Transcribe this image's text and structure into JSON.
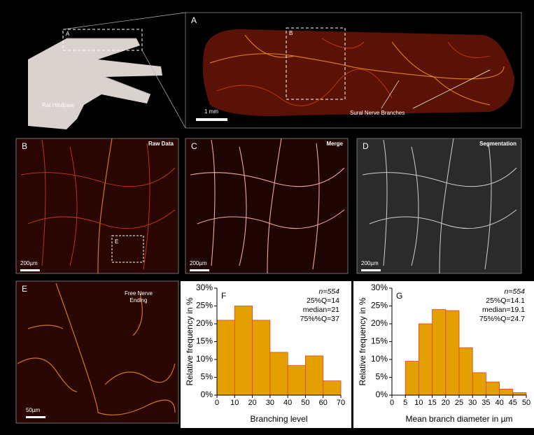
{
  "figure": {
    "hindpaw": {
      "box_label": "A",
      "caption": "Rat Hindpaw"
    },
    "panel_a": {
      "label": "A",
      "inset_label": "B",
      "scale_bar": "1 mm",
      "annotation": "Sural Nerve Branches"
    },
    "panel_b": {
      "label": "B",
      "title": "Raw Data",
      "inset_label": "E",
      "scale_bar": "200µm"
    },
    "panel_c": {
      "label": "C",
      "title": "Merge",
      "scale_bar": "200µm"
    },
    "panel_d": {
      "label": "D",
      "title": "Segmentation",
      "scale_bar": "200µm"
    },
    "panel_e": {
      "label": "E",
      "title_lines": [
        "Free Nerve",
        "Ending"
      ],
      "scale_bar": "50µm"
    }
  },
  "chart_data": [
    {
      "type": "histogram",
      "panel_label": "F",
      "x_label": "Branching level",
      "y_label": "Relative frequency in %",
      "bins": [
        0,
        10,
        20,
        30,
        40,
        50,
        60,
        70
      ],
      "values": [
        21,
        25,
        21,
        12,
        8.3,
        11,
        4
      ],
      "color": "#e3a000",
      "edge_color": "#e0402a",
      "xlim": [
        0,
        70
      ],
      "xticks": [
        0,
        10,
        20,
        30,
        40,
        50,
        60,
        70
      ],
      "ylim": [
        0,
        30
      ],
      "yticks": [
        {
          "value": 0,
          "label": "0%"
        },
        {
          "value": 5,
          "label": "5%"
        },
        {
          "value": 10,
          "label": "10%"
        },
        {
          "value": 15,
          "label": "15%"
        },
        {
          "value": 20,
          "label": "20%"
        },
        {
          "value": 25,
          "label": "25%"
        },
        {
          "value": 30,
          "label": "30%"
        }
      ],
      "annotations": [
        "n=554",
        "25%Q=14",
        "median=21",
        "75%%Q=37"
      ]
    },
    {
      "type": "histogram",
      "panel_label": "G",
      "x_label": "Mean branch diameter in µm",
      "y_label": "Relative frequency in %",
      "bins": [
        5,
        10,
        15,
        20,
        25,
        30,
        35,
        40,
        45,
        50
      ],
      "values": [
        9.5,
        20,
        24,
        23.7,
        13.3,
        6.3,
        3.7,
        1.7,
        0.7
      ],
      "color": "#e3a000",
      "edge_color": "#e0402a",
      "xlim": [
        0,
        50
      ],
      "xticks": [
        0,
        5,
        10,
        15,
        20,
        25,
        30,
        35,
        40,
        45,
        50
      ],
      "ylim": [
        0,
        30
      ],
      "yticks": [
        {
          "value": 0,
          "label": "0%"
        },
        {
          "value": 5,
          "label": "5%"
        },
        {
          "value": 10,
          "label": "10%"
        },
        {
          "value": 15,
          "label": "15%"
        },
        {
          "value": 20,
          "label": "20%"
        },
        {
          "value": 25,
          "label": "25%"
        },
        {
          "value": 30,
          "label": "30%"
        }
      ],
      "annotations": [
        "n=554",
        "25%Q=14.1",
        "median=19.1",
        "75%%Q=24.7"
      ]
    }
  ]
}
